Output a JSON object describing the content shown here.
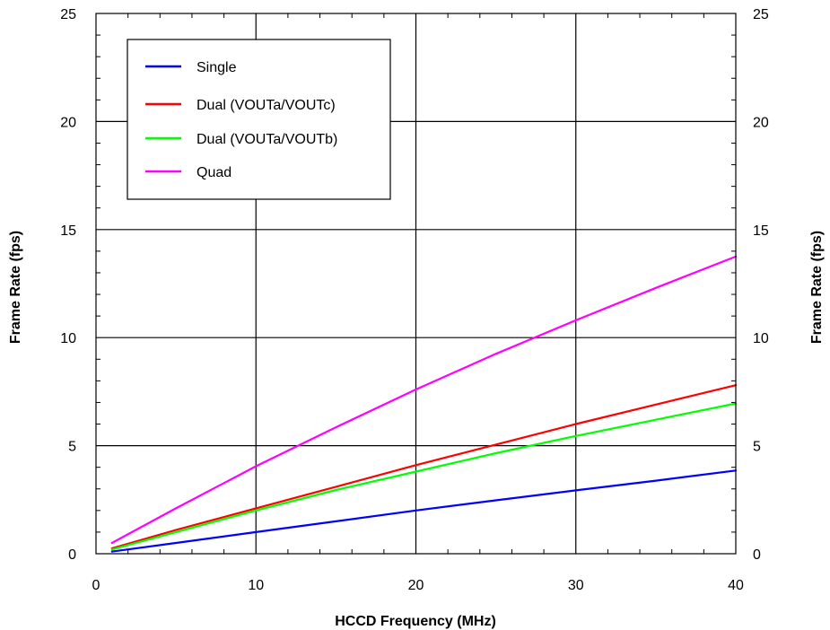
{
  "chart_data": {
    "type": "line",
    "xlabel": "HCCD Frequency (MHz)",
    "ylabel": "Frame Rate (fps)",
    "ylabel_right": "Frame Rate (fps)",
    "xlim": [
      0,
      40
    ],
    "ylim": [
      0,
      25
    ],
    "x_ticks": [
      "0",
      "10",
      "20",
      "30",
      "40"
    ],
    "y_ticks": [
      "0",
      "5",
      "10",
      "15",
      "20",
      "25"
    ],
    "y_ticks_right": [
      "0",
      "5",
      "10",
      "15",
      "20",
      "25"
    ],
    "grid": true,
    "legend_position": "top-left",
    "series": [
      {
        "name": "Single",
        "color": "#0000ff",
        "x": [
          1,
          5,
          10,
          15,
          20,
          25,
          30,
          35,
          40
        ],
        "y": [
          0.1,
          0.5,
          1.0,
          1.5,
          2.0,
          2.47,
          2.93,
          3.38,
          3.85
        ]
      },
      {
        "name": "Dual (VOUTa/VOUTc)",
        "color": "#ff0000",
        "x": [
          1,
          5,
          10,
          15,
          20,
          25,
          30,
          35,
          40
        ],
        "y": [
          0.25,
          1.1,
          2.1,
          3.1,
          4.1,
          5.05,
          6.0,
          6.9,
          7.8
        ]
      },
      {
        "name": "Dual (VOUTa/VOUTb)",
        "color": "#00ff00",
        "x": [
          1,
          5,
          10,
          15,
          20,
          25,
          30,
          35,
          40
        ],
        "y": [
          0.2,
          1.0,
          2.0,
          2.95,
          3.8,
          4.65,
          5.45,
          6.2,
          6.95
        ]
      },
      {
        "name": "Quad",
        "color": "#ff00ff",
        "x": [
          1,
          5,
          10,
          15,
          20,
          25,
          30,
          35,
          40
        ],
        "y": [
          0.5,
          2.1,
          4.05,
          5.85,
          7.6,
          9.25,
          10.8,
          12.3,
          13.75
        ]
      }
    ]
  }
}
